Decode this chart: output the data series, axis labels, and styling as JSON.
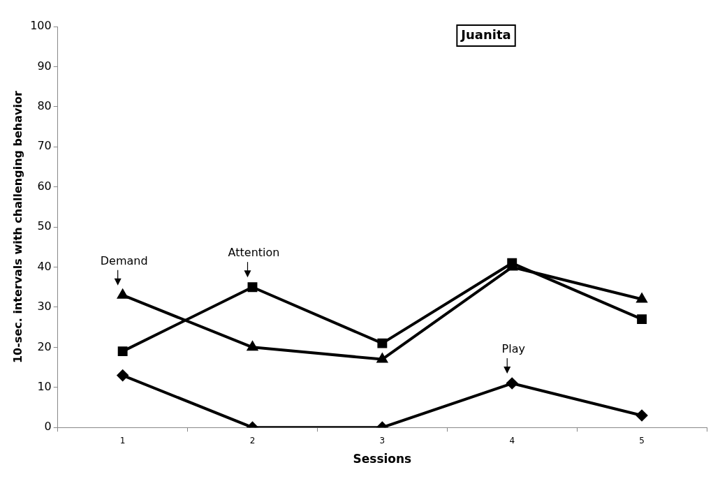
{
  "chart_data": {
    "type": "line",
    "title": "Juanita",
    "xlabel": "Sessions",
    "ylabel": "10-sec. intervals with challenging behavior",
    "categories": [
      "1",
      "2",
      "3",
      "4",
      "5"
    ],
    "series": [
      {
        "color": "#000000",
        "marker": "triangle",
        "values": [
          33,
          20,
          17,
          40,
          32
        ]
      },
      {
        "color": "#000000",
        "marker": "square",
        "values": [
          19,
          35,
          21,
          41,
          27
        ]
      },
      {
        "color": "#000000",
        "marker": "diamond",
        "values": [
          13,
          0,
          0,
          11,
          3
        ]
      }
    ],
    "annotations": [
      {
        "text": "Demand",
        "x": "1",
        "y": 33
      },
      {
        "text": "Attention",
        "x": "2",
        "y": 35
      },
      {
        "text": "Play",
        "x": "4",
        "y": 11
      }
    ],
    "ylim": [
      0,
      100
    ],
    "yticks": [
      0,
      10,
      20,
      30,
      40,
      50,
      60,
      70,
      80,
      90,
      100
    ],
    "grid": false,
    "legend": false,
    "line_style": "solid"
  }
}
